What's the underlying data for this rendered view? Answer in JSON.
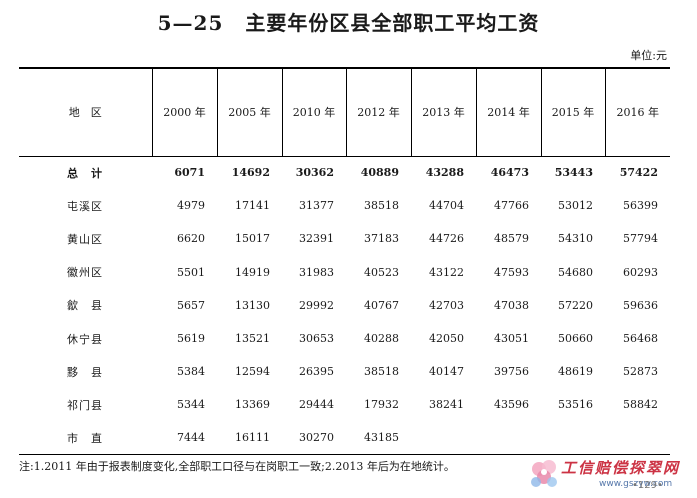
{
  "title": {
    "number": "5—25",
    "text": "主要年份区县全部职工平均工资"
  },
  "unit": "单位:元",
  "table": {
    "region_header": "地　区",
    "years": [
      "2000 年",
      "2005 年",
      "2010 年",
      "2012 年",
      "2013 年",
      "2014 年",
      "2015 年",
      "2016 年"
    ],
    "rows": [
      {
        "region": "总　计",
        "values": [
          "6071",
          "14692",
          "30362",
          "40889",
          "43288",
          "46473",
          "53443",
          "57422"
        ]
      },
      {
        "region": "屯溪区",
        "values": [
          "4979",
          "17141",
          "31377",
          "38518",
          "44704",
          "47766",
          "53012",
          "56399"
        ]
      },
      {
        "region": "黄山区",
        "values": [
          "6620",
          "15017",
          "32391",
          "37183",
          "44726",
          "48579",
          "54310",
          "57794"
        ]
      },
      {
        "region": "徽州区",
        "values": [
          "5501",
          "14919",
          "31983",
          "40523",
          "43122",
          "47593",
          "54680",
          "60293"
        ]
      },
      {
        "region": "歙　县",
        "values": [
          "5657",
          "13130",
          "29992",
          "40767",
          "42703",
          "47038",
          "57220",
          "59636"
        ]
      },
      {
        "region": "休宁县",
        "values": [
          "5619",
          "13521",
          "30653",
          "40288",
          "42050",
          "43051",
          "50660",
          "56468"
        ]
      },
      {
        "region": "黟　县",
        "values": [
          "5384",
          "12594",
          "26395",
          "38518",
          "40147",
          "39756",
          "48619",
          "52873"
        ]
      },
      {
        "region": "祁门县",
        "values": [
          "5344",
          "13369",
          "29444",
          "17932",
          "38241",
          "43596",
          "53516",
          "58842"
        ]
      },
      {
        "region": "市　直",
        "values": [
          "7444",
          "16111",
          "30270",
          "43185",
          "",
          "",
          "",
          ""
        ]
      }
    ]
  },
  "note": "注:1.2011 年由于报表制度变化,全部职工口径与在岗职工一致;2.2013 年后为在地统计。",
  "watermark": {
    "text": "工信赔偿探翠网",
    "url": "www.gszyw.com"
  },
  "page_number": "•129•",
  "colors": {
    "watermark_text": "#cc3344",
    "watermark_url": "#5577aa"
  }
}
